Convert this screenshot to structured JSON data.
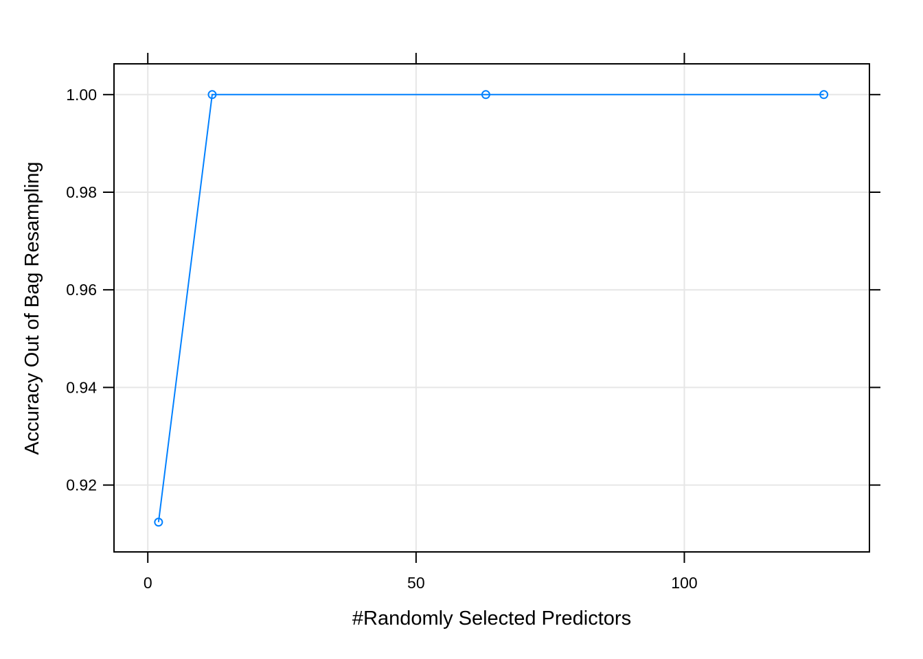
{
  "chart_data": {
    "type": "line",
    "title": "",
    "xlabel": "#Randomly Selected Predictors",
    "ylabel": "Accuracy Out of Bag Resampling",
    "xlim": [
      -6.3,
      134.5
    ],
    "ylim": [
      0.9063,
      1.0063
    ],
    "x_ticks": [
      0,
      50,
      100
    ],
    "x_tick_labels": [
      "0",
      "50",
      "100"
    ],
    "y_ticks": [
      0.92,
      0.94,
      0.96,
      0.98,
      1.0
    ],
    "y_tick_labels": [
      "0.92",
      "0.94",
      "0.96",
      "0.98",
      "1.00"
    ],
    "grid": true,
    "line_color": "#0080ff",
    "grid_color": "#e6e6e6",
    "series": [
      {
        "x": [
          2,
          12,
          63,
          126
        ],
        "y": [
          0.9124,
          1.0,
          1.0,
          1.0
        ]
      }
    ]
  }
}
